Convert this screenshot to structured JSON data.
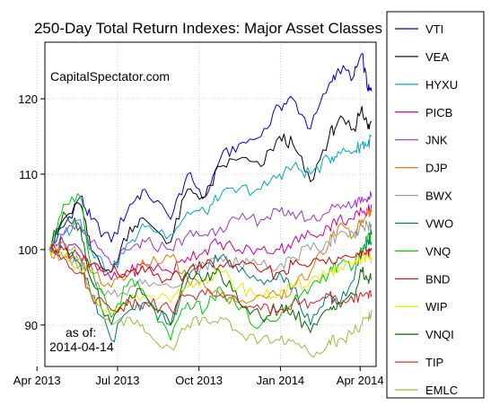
{
  "chart_data": {
    "type": "line",
    "title": "250-Day Total Return Indexes: Major Asset Classes",
    "annotation_source": "CapitalSpectator.com",
    "annotation_asof_label": "as of:",
    "annotation_asof_date": "2014-04-14",
    "xlabel": "",
    "ylabel": "",
    "ylim": [
      84.5,
      127.5
    ],
    "yticks": [
      90,
      100,
      110,
      120
    ],
    "ytick_labels": [
      "90",
      "100",
      "110",
      "120"
    ],
    "xticks": [
      "2013-04-01",
      "2013-07-01",
      "2013-10-01",
      "2014-01-01",
      "2014-04-01"
    ],
    "xtick_labels": [
      "Apr 2013",
      "Jul 2013",
      "Oct 2013",
      "Jan 2014",
      "Apr 2014"
    ],
    "xlim": [
      "2013-04-15",
      "2014-04-14"
    ],
    "grid": true,
    "legend_position": "right",
    "series": [
      {
        "name": "VTI",
        "color": "#0000cc",
        "x": [
          "2013-04-15",
          "2013-05-01",
          "2013-05-20",
          "2013-06-01",
          "2013-06-24",
          "2013-07-15",
          "2013-08-01",
          "2013-08-30",
          "2013-09-18",
          "2013-10-08",
          "2013-10-25",
          "2013-11-15",
          "2013-12-10",
          "2013-12-31",
          "2014-01-15",
          "2014-02-04",
          "2014-02-25",
          "2014-03-07",
          "2014-03-25",
          "2014-04-03",
          "2014-04-10",
          "2014-04-14"
        ],
        "values": [
          100,
          103,
          107,
          104,
          101,
          106,
          108,
          104,
          110,
          107,
          112,
          114,
          115,
          119,
          120,
          116,
          122,
          124,
          123,
          126,
          121,
          121
        ]
      },
      {
        "name": "VEA",
        "color": "#000000",
        "x": [
          "2013-04-15",
          "2013-05-01",
          "2013-05-20",
          "2013-06-01",
          "2013-06-24",
          "2013-07-15",
          "2013-08-01",
          "2013-08-30",
          "2013-09-18",
          "2013-10-08",
          "2013-10-25",
          "2013-11-15",
          "2013-12-10",
          "2013-12-31",
          "2014-01-15",
          "2014-02-04",
          "2014-02-25",
          "2014-03-07",
          "2014-03-25",
          "2014-04-03",
          "2014-04-10",
          "2014-04-14"
        ],
        "values": [
          100,
          104,
          106,
          100,
          97,
          103,
          104,
          101,
          108,
          107,
          111,
          112,
          111,
          115,
          114,
          109,
          115,
          117,
          116,
          119,
          116,
          117
        ]
      },
      {
        "name": "HYXU",
        "color": "#00a8c8",
        "x": [
          "2013-04-15",
          "2013-05-01",
          "2013-05-20",
          "2013-06-01",
          "2013-06-24",
          "2013-07-15",
          "2013-08-01",
          "2013-08-30",
          "2013-09-18",
          "2013-10-08",
          "2013-10-25",
          "2013-11-15",
          "2013-12-10",
          "2013-12-31",
          "2014-01-15",
          "2014-02-04",
          "2014-02-25",
          "2014-03-07",
          "2014-03-25",
          "2014-04-03",
          "2014-04-10",
          "2014-04-14"
        ],
        "values": [
          100,
          102,
          104,
          100,
          97,
          101,
          103,
          102,
          105,
          105,
          107,
          108,
          108,
          110,
          111,
          110,
          112,
          113,
          113,
          114,
          114,
          115
        ]
      },
      {
        "name": "PICB",
        "color": "#cc0099",
        "x": [
          "2013-04-15",
          "2013-05-01",
          "2013-05-20",
          "2013-06-01",
          "2013-06-24",
          "2013-07-15",
          "2013-08-01",
          "2013-08-30",
          "2013-09-18",
          "2013-10-08",
          "2013-10-25",
          "2013-11-15",
          "2013-12-10",
          "2013-12-31",
          "2014-01-15",
          "2014-02-04",
          "2014-02-25",
          "2014-03-07",
          "2014-03-25",
          "2014-04-03",
          "2014-04-10",
          "2014-04-14"
        ],
        "values": [
          100,
          101,
          100,
          98,
          96,
          97,
          98,
          97,
          99,
          100,
          101,
          100,
          100,
          100,
          101,
          102,
          103,
          104,
          104,
          105,
          105,
          106
        ]
      },
      {
        "name": "JNK",
        "color": "#9933cc",
        "x": [
          "2013-04-15",
          "2013-05-01",
          "2013-05-20",
          "2013-06-01",
          "2013-06-24",
          "2013-07-15",
          "2013-08-01",
          "2013-08-30",
          "2013-09-18",
          "2013-10-08",
          "2013-10-25",
          "2013-11-15",
          "2013-12-10",
          "2013-12-31",
          "2014-01-15",
          "2014-02-04",
          "2014-02-25",
          "2014-03-07",
          "2014-03-25",
          "2014-04-03",
          "2014-04-10",
          "2014-04-14"
        ],
        "values": [
          100,
          102,
          103,
          101,
          98,
          100,
          101,
          100,
          102,
          102,
          103,
          104,
          104,
          105,
          105,
          104,
          105,
          106,
          106,
          107,
          107,
          107
        ]
      },
      {
        "name": "DJP",
        "color": "#e07b00",
        "x": [
          "2013-04-15",
          "2013-05-01",
          "2013-05-20",
          "2013-06-01",
          "2013-06-24",
          "2013-07-15",
          "2013-08-01",
          "2013-08-30",
          "2013-09-18",
          "2013-10-08",
          "2013-10-25",
          "2013-11-15",
          "2013-12-10",
          "2013-12-31",
          "2014-01-15",
          "2014-02-04",
          "2014-02-25",
          "2014-03-07",
          "2014-03-25",
          "2014-04-03",
          "2014-04-10",
          "2014-04-14"
        ],
        "values": [
          100,
          99,
          98,
          97,
          95,
          97,
          98,
          99,
          96,
          95,
          94,
          93,
          94,
          94,
          95,
          97,
          101,
          103,
          102,
          104,
          105,
          105
        ]
      },
      {
        "name": "BWX",
        "color": "#999999",
        "x": [
          "2013-04-15",
          "2013-05-01",
          "2013-05-20",
          "2013-06-01",
          "2013-06-24",
          "2013-07-15",
          "2013-08-01",
          "2013-08-30",
          "2013-09-18",
          "2013-10-08",
          "2013-10-25",
          "2013-11-15",
          "2013-12-10",
          "2013-12-31",
          "2014-01-15",
          "2014-02-04",
          "2014-02-25",
          "2014-03-07",
          "2014-03-25",
          "2014-04-03",
          "2014-04-10",
          "2014-04-14"
        ],
        "values": [
          100,
          99,
          98,
          96,
          94,
          95,
          96,
          95,
          97,
          98,
          99,
          98,
          98,
          98,
          99,
          100,
          101,
          102,
          102,
          103,
          103,
          103
        ]
      },
      {
        "name": "VWO",
        "color": "#007777",
        "x": [
          "2013-04-15",
          "2013-05-01",
          "2013-05-20",
          "2013-06-01",
          "2013-06-24",
          "2013-07-15",
          "2013-08-01",
          "2013-08-30",
          "2013-09-18",
          "2013-10-08",
          "2013-10-25",
          "2013-11-15",
          "2013-12-10",
          "2013-12-31",
          "2014-01-15",
          "2014-02-04",
          "2014-02-25",
          "2014-03-07",
          "2014-03-25",
          "2014-04-03",
          "2014-04-10",
          "2014-04-14"
        ],
        "values": [
          100,
          101,
          98,
          94,
          88,
          92,
          93,
          90,
          96,
          98,
          99,
          97,
          96,
          97,
          95,
          90,
          94,
          93,
          96,
          100,
          101,
          102
        ]
      },
      {
        "name": "VNQ",
        "color": "#00cc00",
        "x": [
          "2013-04-15",
          "2013-05-01",
          "2013-05-20",
          "2013-06-01",
          "2013-06-24",
          "2013-07-15",
          "2013-08-01",
          "2013-08-30",
          "2013-09-18",
          "2013-10-08",
          "2013-10-25",
          "2013-11-15",
          "2013-12-10",
          "2013-12-31",
          "2014-01-15",
          "2014-02-04",
          "2014-02-25",
          "2014-03-07",
          "2014-03-25",
          "2014-04-03",
          "2014-04-10",
          "2014-04-14"
        ],
        "values": [
          100,
          106,
          107,
          98,
          91,
          96,
          94,
          88,
          93,
          92,
          95,
          92,
          90,
          91,
          93,
          95,
          97,
          98,
          98,
          100,
          102,
          101
        ]
      },
      {
        "name": "BND",
        "color": "#cc0000",
        "x": [
          "2013-04-15",
          "2013-05-01",
          "2013-05-20",
          "2013-06-01",
          "2013-06-24",
          "2013-07-15",
          "2013-08-01",
          "2013-08-30",
          "2013-09-18",
          "2013-10-08",
          "2013-10-25",
          "2013-11-15",
          "2013-12-10",
          "2013-12-31",
          "2014-01-15",
          "2014-02-04",
          "2014-02-25",
          "2014-03-07",
          "2014-03-25",
          "2014-04-03",
          "2014-04-10",
          "2014-04-14"
        ],
        "values": [
          100,
          100,
          99,
          98,
          97,
          97,
          97,
          96,
          97,
          98,
          98,
          98,
          97,
          97,
          98,
          98,
          99,
          99,
          99,
          99,
          100,
          100
        ]
      },
      {
        "name": "WIP",
        "color": "#e8e800",
        "x": [
          "2013-04-15",
          "2013-05-01",
          "2013-05-20",
          "2013-06-01",
          "2013-06-24",
          "2013-07-15",
          "2013-08-01",
          "2013-08-30",
          "2013-09-18",
          "2013-10-08",
          "2013-10-25",
          "2013-11-15",
          "2013-12-10",
          "2013-12-31",
          "2014-01-15",
          "2014-02-04",
          "2014-02-25",
          "2014-03-07",
          "2014-03-25",
          "2014-04-03",
          "2014-04-10",
          "2014-04-14"
        ],
        "values": [
          100,
          99,
          97,
          94,
          92,
          93,
          94,
          93,
          95,
          96,
          97,
          95,
          94,
          94,
          95,
          96,
          97,
          97,
          98,
          99,
          99,
          99
        ]
      },
      {
        "name": "VNQI",
        "color": "#006600",
        "x": [
          "2013-04-15",
          "2013-05-01",
          "2013-05-20",
          "2013-06-01",
          "2013-06-24",
          "2013-07-15",
          "2013-08-01",
          "2013-08-30",
          "2013-09-18",
          "2013-10-08",
          "2013-10-25",
          "2013-11-15",
          "2013-12-10",
          "2013-12-31",
          "2014-01-15",
          "2014-02-04",
          "2014-02-25",
          "2014-03-07",
          "2014-03-25",
          "2014-04-03",
          "2014-04-10",
          "2014-04-14"
        ],
        "values": [
          100,
          105,
          103,
          96,
          90,
          94,
          94,
          90,
          97,
          96,
          97,
          93,
          91,
          92,
          92,
          89,
          92,
          93,
          94,
          97,
          96,
          96
        ]
      },
      {
        "name": "TIP",
        "color": "#cc2222",
        "x": [
          "2013-04-15",
          "2013-05-01",
          "2013-05-20",
          "2013-06-01",
          "2013-06-24",
          "2013-07-15",
          "2013-08-01",
          "2013-08-30",
          "2013-09-18",
          "2013-10-08",
          "2013-10-25",
          "2013-11-15",
          "2013-12-10",
          "2013-12-31",
          "2014-01-15",
          "2014-02-04",
          "2014-02-25",
          "2014-03-07",
          "2014-03-25",
          "2014-04-03",
          "2014-04-10",
          "2014-04-14"
        ],
        "values": [
          100,
          99,
          97,
          94,
          92,
          93,
          93,
          92,
          94,
          94,
          94,
          93,
          92,
          92,
          93,
          93,
          94,
          93,
          93,
          94,
          94,
          94
        ]
      },
      {
        "name": "EMLC",
        "color": "#99bb44",
        "x": [
          "2013-04-15",
          "2013-05-01",
          "2013-05-20",
          "2013-06-01",
          "2013-06-24",
          "2013-07-15",
          "2013-08-01",
          "2013-08-30",
          "2013-09-18",
          "2013-10-08",
          "2013-10-25",
          "2013-11-15",
          "2013-12-10",
          "2013-12-31",
          "2014-01-15",
          "2014-02-04",
          "2014-02-25",
          "2014-03-07",
          "2014-03-25",
          "2014-04-03",
          "2014-04-10",
          "2014-04-14"
        ],
        "values": [
          100,
          101,
          99,
          94,
          90,
          91,
          89,
          87,
          90,
          91,
          91,
          89,
          88,
          88,
          88,
          86,
          88,
          88,
          89,
          90,
          91,
          92
        ]
      }
    ]
  }
}
